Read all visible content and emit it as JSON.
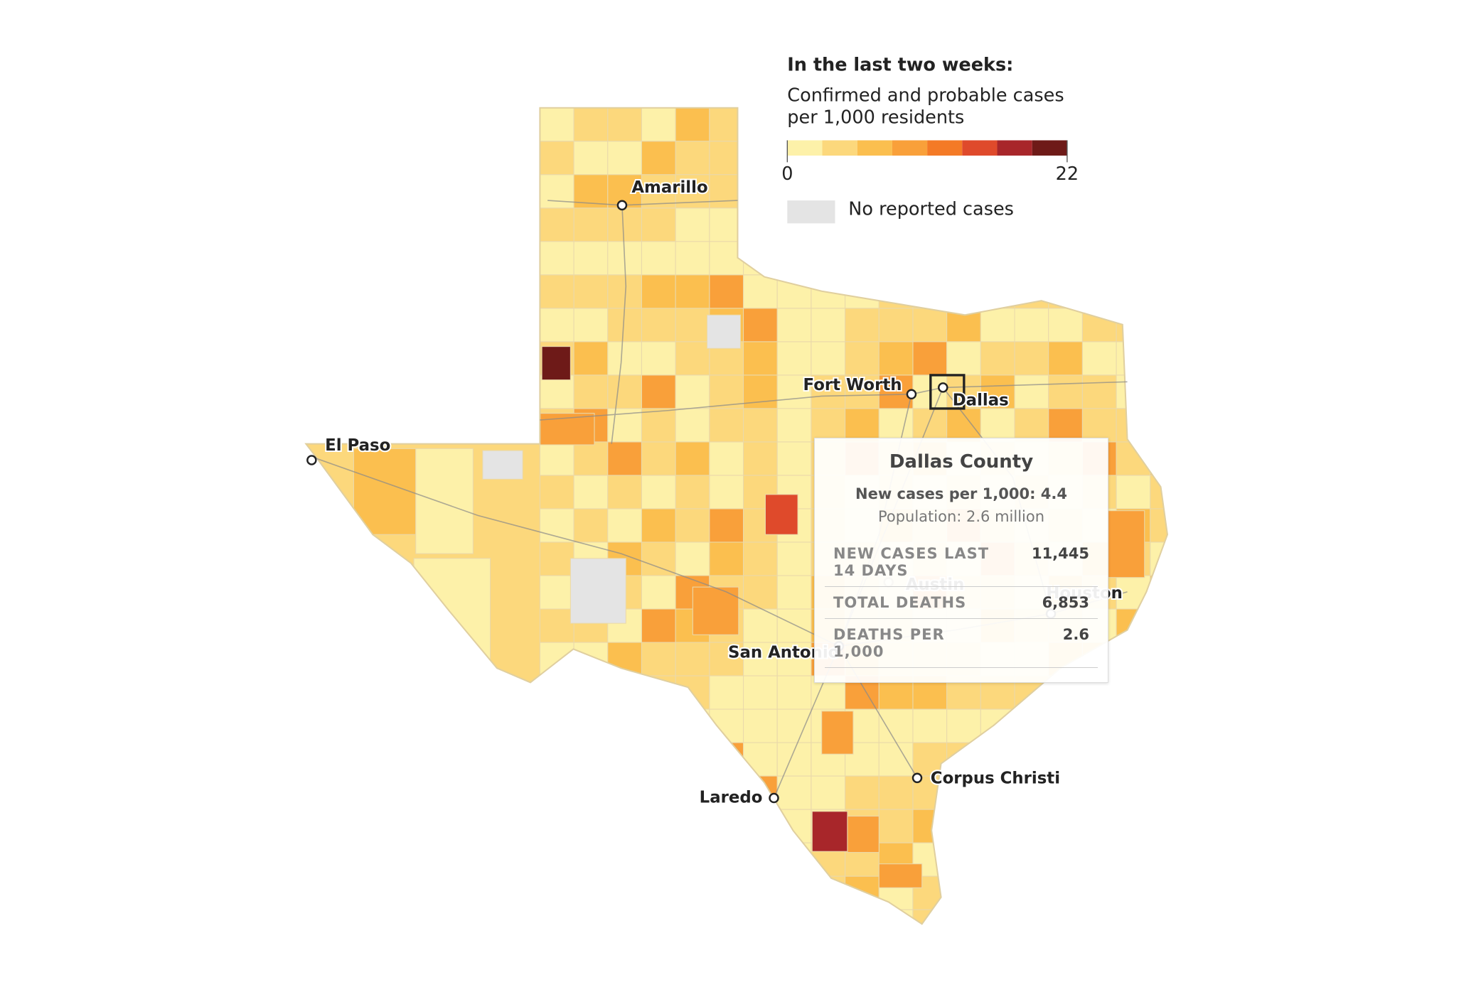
{
  "legend": {
    "title": "In the last two weeks:",
    "subtitle_lines": [
      "Confirmed and probable cases",
      "per 1,000 residents"
    ],
    "scale_min": 0,
    "scale_max": 22,
    "colors": [
      "#fdf1a9",
      "#fcd87c",
      "#fbbf4f",
      "#f9a03a",
      "#f47a26",
      "#df4a2b",
      "#a8262a",
      "#6e1a18"
    ],
    "no_data_color": "#e4e4e4",
    "no_data_label": "No reported cases"
  },
  "cities": [
    {
      "label": "Amarillo"
    },
    {
      "label": "Fort Worth"
    },
    {
      "label": "Dallas"
    },
    {
      "label": "El Paso"
    },
    {
      "label": "Austin"
    },
    {
      "label": "Houston"
    },
    {
      "label": "San Antonio"
    },
    {
      "label": "Corpus Christi"
    },
    {
      "label": "Laredo"
    }
  ],
  "tooltip": {
    "title": "Dallas County",
    "line1": "New cases per 1,000: 4.4",
    "line2": "Population: 2.6 million",
    "rows": [
      {
        "label": "NEW CASES LAST 14 DAYS",
        "value": "11,445"
      },
      {
        "label": "TOTAL DEATHS",
        "value": "6,853"
      },
      {
        "label": "DEATHS PER 1,000",
        "value": "2.6"
      }
    ]
  }
}
